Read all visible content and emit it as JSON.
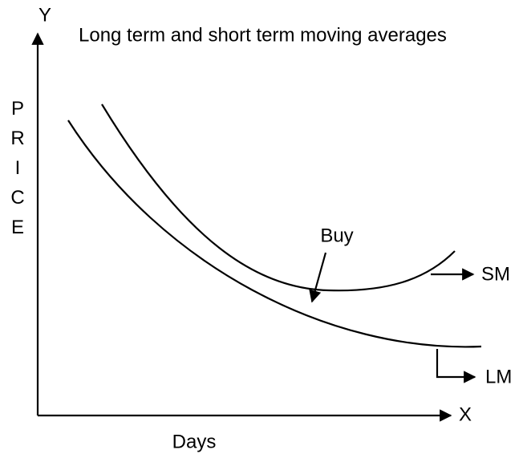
{
  "title": "Long term and short term moving averages",
  "y_axis": {
    "letter": "Y",
    "label": "PRICE"
  },
  "x_axis": {
    "letter": "X",
    "label": "Days"
  },
  "annotation": "Buy",
  "curves": [
    {
      "label": "SM"
    },
    {
      "label": "LM"
    }
  ]
}
